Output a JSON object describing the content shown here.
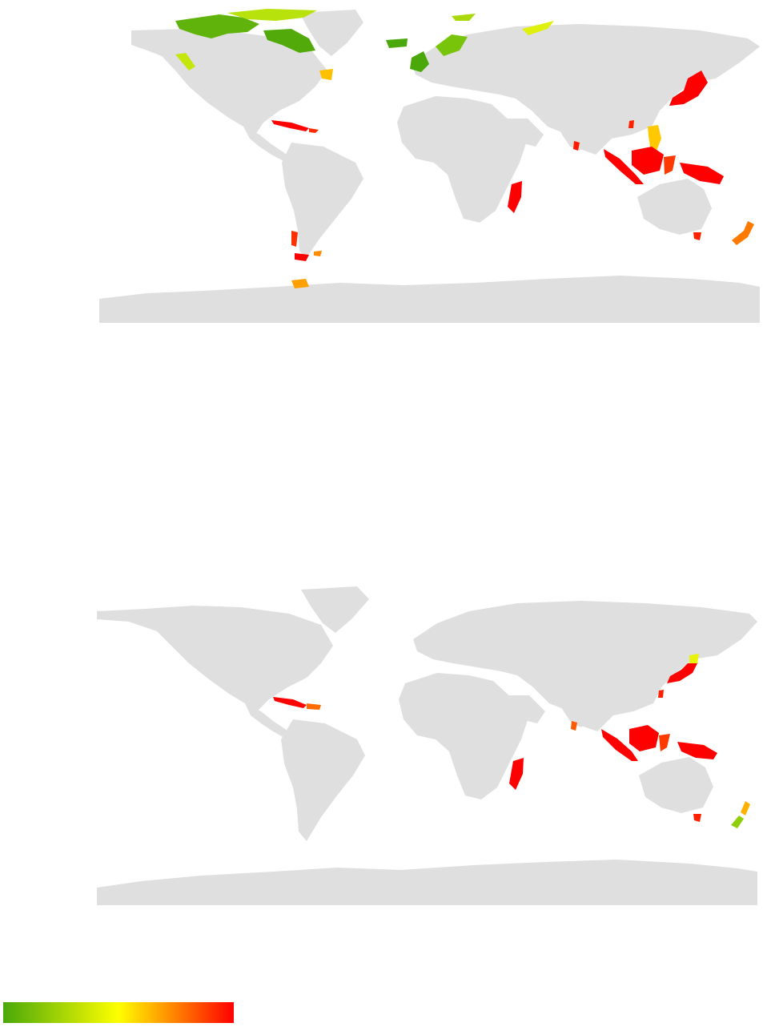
{
  "maps": [
    {
      "id": "top",
      "description_free": true,
      "colors": {
        "land": "#dfdfdf",
        "ocean": "#ffffff"
      },
      "highlighted_regions": [
        {
          "name": "canadian-arctic-archipelago",
          "color": "#5fb30a"
        },
        {
          "name": "baffin-island",
          "color": "#52aa0a"
        },
        {
          "name": "greenland-north",
          "color": "#b8e20b"
        },
        {
          "name": "svalbard",
          "color": "#a9d90b"
        },
        {
          "name": "iceland",
          "color": "#4aa80a"
        },
        {
          "name": "british-isles",
          "color": "#4aa80a"
        },
        {
          "name": "scandinavia-coast",
          "color": "#78c40a"
        },
        {
          "name": "novaya-zemlya",
          "color": "#dff00b"
        },
        {
          "name": "alaska-coast",
          "color": "#c5e60b"
        },
        {
          "name": "newfoundland",
          "color": "#ffc000"
        },
        {
          "name": "cuba",
          "color": "#ff0000"
        },
        {
          "name": "hispaniola",
          "color": "#ff2a00"
        },
        {
          "name": "sri-lanka",
          "color": "#ff1a00"
        },
        {
          "name": "madagascar",
          "color": "#ff0000"
        },
        {
          "name": "japan",
          "color": "#ff0000"
        },
        {
          "name": "taiwan",
          "color": "#ff2000"
        },
        {
          "name": "philippines",
          "color": "#ffc800"
        },
        {
          "name": "sumatra",
          "color": "#ff0000"
        },
        {
          "name": "borneo",
          "color": "#ff0000"
        },
        {
          "name": "sulawesi",
          "color": "#ff3a00"
        },
        {
          "name": "new-guinea",
          "color": "#ff0000"
        },
        {
          "name": "tasmania",
          "color": "#ff2000"
        },
        {
          "name": "new-zealand",
          "color": "#ff7a00"
        },
        {
          "name": "tierra-del-fuego",
          "color": "#ff0000"
        },
        {
          "name": "falklands",
          "color": "#ff8a00"
        },
        {
          "name": "chile-archipelago",
          "color": "#ff3000"
        },
        {
          "name": "antarctic-peninsula-islands",
          "color": "#ffa000"
        }
      ]
    },
    {
      "id": "bottom",
      "colors": {
        "land": "#dfdfdf",
        "ocean": "#ffffff"
      },
      "highlighted_regions": [
        {
          "name": "cuba",
          "color": "#ff0000"
        },
        {
          "name": "hispaniola",
          "color": "#ff6a00"
        },
        {
          "name": "japan",
          "color": "#ff0000"
        },
        {
          "name": "hokkaido",
          "color": "#e8f20b"
        },
        {
          "name": "taiwan",
          "color": "#ff2000"
        },
        {
          "name": "sri-lanka",
          "color": "#ff5a00"
        },
        {
          "name": "madagascar",
          "color": "#ff0000"
        },
        {
          "name": "sumatra",
          "color": "#ff0000"
        },
        {
          "name": "borneo",
          "color": "#ff0000"
        },
        {
          "name": "sulawesi",
          "color": "#ff3a00"
        },
        {
          "name": "new-guinea",
          "color": "#ff0000"
        },
        {
          "name": "tasmania",
          "color": "#ff2000"
        },
        {
          "name": "new-zealand-south",
          "color": "#8fcf0a"
        },
        {
          "name": "new-zealand-north",
          "color": "#ffb000"
        }
      ]
    }
  ],
  "legend": {
    "gradient": [
      "#4aa80a",
      "#ffff00",
      "#ff0000"
    ]
  }
}
